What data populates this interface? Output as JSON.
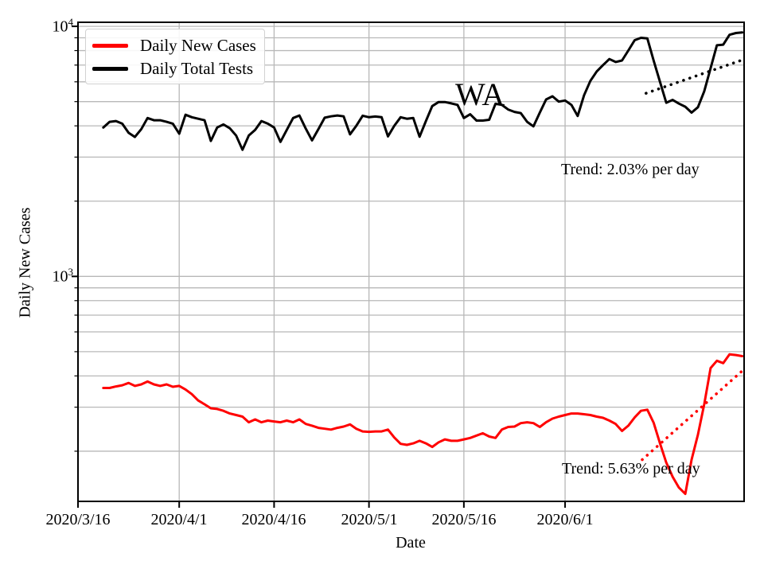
{
  "window": {
    "background": "#ffffff"
  },
  "chart_data": {
    "type": "line",
    "state_label": "WA",
    "x_axis": {
      "label": "Date",
      "tick_labels": [
        "2020/3/16",
        "2020/4/1",
        "2020/4/16",
        "2020/5/1",
        "2020/5/16",
        "2020/6/1"
      ],
      "tick_days": [
        0,
        16,
        31,
        46,
        61,
        77
      ],
      "range_days": [
        0,
        105.3
      ]
    },
    "y_axis": {
      "label": "Daily New Cases",
      "scale": "log",
      "range": [
        126,
        10380
      ],
      "major_ticks": [
        {
          "value": 1000,
          "base": "10",
          "exp": "3"
        },
        {
          "value": 10000,
          "base": "10",
          "exp": "4"
        }
      ],
      "minor_tick_values": [
        200,
        300,
        400,
        500,
        600,
        700,
        800,
        900,
        2000,
        3000,
        4000,
        5000,
        6000,
        7000,
        8000,
        9000
      ]
    },
    "grid": true,
    "colors": {
      "cases": "#ff0000",
      "tests": "#000000",
      "grid": "#b8b8b8"
    },
    "annotation": {
      "state": "WA"
    },
    "start_day_offset": 4,
    "dates": [
      "2020/3/20",
      "2020/3/21",
      "2020/3/22",
      "2020/3/23",
      "2020/3/24",
      "2020/3/25",
      "2020/3/26",
      "2020/3/27",
      "2020/3/28",
      "2020/3/29",
      "2020/3/30",
      "2020/3/31",
      "2020/4/1",
      "2020/4/2",
      "2020/4/3",
      "2020/4/4",
      "2020/4/5",
      "2020/4/6",
      "2020/4/7",
      "2020/4/8",
      "2020/4/9",
      "2020/4/10",
      "2020/4/11",
      "2020/4/12",
      "2020/4/13",
      "2020/4/14",
      "2020/4/15",
      "2020/4/16",
      "2020/4/17",
      "2020/4/18",
      "2020/4/19",
      "2020/4/20",
      "2020/4/21",
      "2020/4/22",
      "2020/4/23",
      "2020/4/24",
      "2020/4/25",
      "2020/4/26",
      "2020/4/27",
      "2020/4/28",
      "2020/4/29",
      "2020/4/30",
      "2020/5/1",
      "2020/5/2",
      "2020/5/3",
      "2020/5/4",
      "2020/5/5",
      "2020/5/6",
      "2020/5/7",
      "2020/5/8",
      "2020/5/9",
      "2020/5/10",
      "2020/5/11",
      "2020/5/12",
      "2020/5/13",
      "2020/5/14",
      "2020/5/15",
      "2020/5/16",
      "2020/5/17",
      "2020/5/18",
      "2020/5/19",
      "2020/5/20",
      "2020/5/21",
      "2020/5/22",
      "2020/5/23",
      "2020/5/24",
      "2020/5/25",
      "2020/5/26",
      "2020/5/27",
      "2020/5/28",
      "2020/5/29",
      "2020/5/30",
      "2020/5/31",
      "2020/6/1",
      "2020/6/2",
      "2020/6/3",
      "2020/6/4",
      "2020/6/5",
      "2020/6/6",
      "2020/6/7",
      "2020/6/8",
      "2020/6/9",
      "2020/6/10",
      "2020/6/11",
      "2020/6/12",
      "2020/6/13",
      "2020/6/14",
      "2020/6/15",
      "2020/6/16",
      "2020/6/17",
      "2020/6/18",
      "2020/6/19",
      "2020/6/20",
      "2020/6/21",
      "2020/6/22",
      "2020/6/23",
      "2020/6/24",
      "2020/6/25",
      "2020/6/26",
      "2020/6/27",
      "2020/6/28",
      "2020/6/29"
    ],
    "series": [
      {
        "name": "Daily New Cases",
        "color": "#ff0000",
        "values": [
          358,
          358,
          363,
          367,
          375,
          365,
          370,
          380,
          370,
          365,
          370,
          362,
          365,
          353,
          338,
          319,
          308,
          297,
          295,
          290,
          283,
          279,
          275,
          261,
          268,
          261,
          265,
          263,
          261,
          265,
          261,
          268,
          257,
          253,
          248,
          246,
          244,
          248,
          251,
          256,
          246,
          240,
          239,
          240,
          240,
          244,
          227,
          214,
          212,
          215,
          220,
          215,
          208,
          217,
          223,
          220,
          220,
          223,
          226,
          231,
          236,
          229,
          226,
          244,
          250,
          251,
          259,
          261,
          259,
          250,
          261,
          270,
          275,
          279,
          283,
          283,
          281,
          279,
          275,
          272,
          265,
          257,
          241,
          253,
          273,
          290,
          293,
          260,
          215,
          180,
          158,
          143,
          135,
          185,
          233,
          308,
          430,
          460,
          450,
          488,
          485,
          480
        ]
      },
      {
        "name": "Daily Total Tests",
        "color": "#000000",
        "values": [
          3940,
          4150,
          4180,
          4080,
          3750,
          3610,
          3880,
          4300,
          4210,
          4210,
          4150,
          4080,
          3720,
          4430,
          4330,
          4270,
          4210,
          3480,
          3940,
          4050,
          3910,
          3660,
          3210,
          3660,
          3850,
          4180,
          4080,
          3940,
          3450,
          3850,
          4300,
          4400,
          3900,
          3500,
          3880,
          4310,
          4365,
          4400,
          4365,
          3700,
          4000,
          4390,
          4330,
          4360,
          4330,
          3630,
          4000,
          4330,
          4270,
          4300,
          3620,
          4180,
          4800,
          4980,
          4980,
          4920,
          4850,
          4300,
          4450,
          4200,
          4200,
          4230,
          4900,
          4850,
          4650,
          4550,
          4500,
          4150,
          3980,
          4520,
          5100,
          5250,
          5000,
          5050,
          4850,
          4380,
          5300,
          6050,
          6600,
          7000,
          7400,
          7200,
          7300,
          8000,
          8800,
          9000,
          8950,
          7300,
          6000,
          4950,
          5080,
          4910,
          4770,
          4520,
          4750,
          5500,
          6800,
          8400,
          8450,
          9250,
          9400,
          9450
        ]
      }
    ],
    "trend_lines": [
      {
        "for": "Daily Total Tests",
        "label": "Trend: 2.03% per day",
        "rate_percent_per_day": 2.03,
        "color": "#000000",
        "start_day": 89.8,
        "end_day": 105.1,
        "start_value": 5400,
        "end_value": 7350,
        "style": "dotted"
      },
      {
        "for": "Daily New Cases",
        "label": "Trend: 5.63% per day",
        "rate_percent_per_day": 5.63,
        "color": "#ff0000",
        "start_day": 89.2,
        "end_day": 105.1,
        "start_value": 185,
        "end_value": 421,
        "style": "dotted"
      }
    ],
    "legend": {
      "position": "upper left",
      "entries": [
        {
          "label": "Daily New Cases",
          "color": "#ff0000"
        },
        {
          "label": "Daily Total Tests",
          "color": "#000000"
        }
      ]
    }
  }
}
